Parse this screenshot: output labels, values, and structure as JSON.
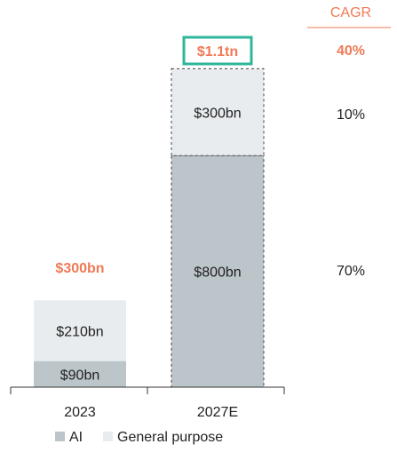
{
  "chart_data": {
    "type": "bar",
    "stacked": true,
    "categories": [
      "2023",
      "2027E"
    ],
    "series": [
      {
        "name": "AI",
        "values": [
          90,
          800
        ],
        "labels": [
          "$90bn",
          "$800bn"
        ],
        "color": "#bcc5ca"
      },
      {
        "name": "General purpose",
        "values": [
          210,
          300
        ],
        "labels": [
          "$210bn",
          "$300bn"
        ],
        "color": "#e8ecef"
      }
    ],
    "totals": [
      {
        "value": 300,
        "label": "$300bn",
        "color": "#f07a56"
      },
      {
        "value": 1100,
        "label": "$1.1tn",
        "color": "#f07a56",
        "box_color": "#2fb59a"
      }
    ],
    "cagr": {
      "title": "CAGR",
      "total": "40%",
      "general_purpose": "10%",
      "ai": "70%",
      "accent_color": "#f07a56"
    },
    "legend": [
      "AI",
      "General purpose"
    ],
    "legend_position": "bottom",
    "ylim": [
      0,
      1100
    ],
    "grid": false
  }
}
